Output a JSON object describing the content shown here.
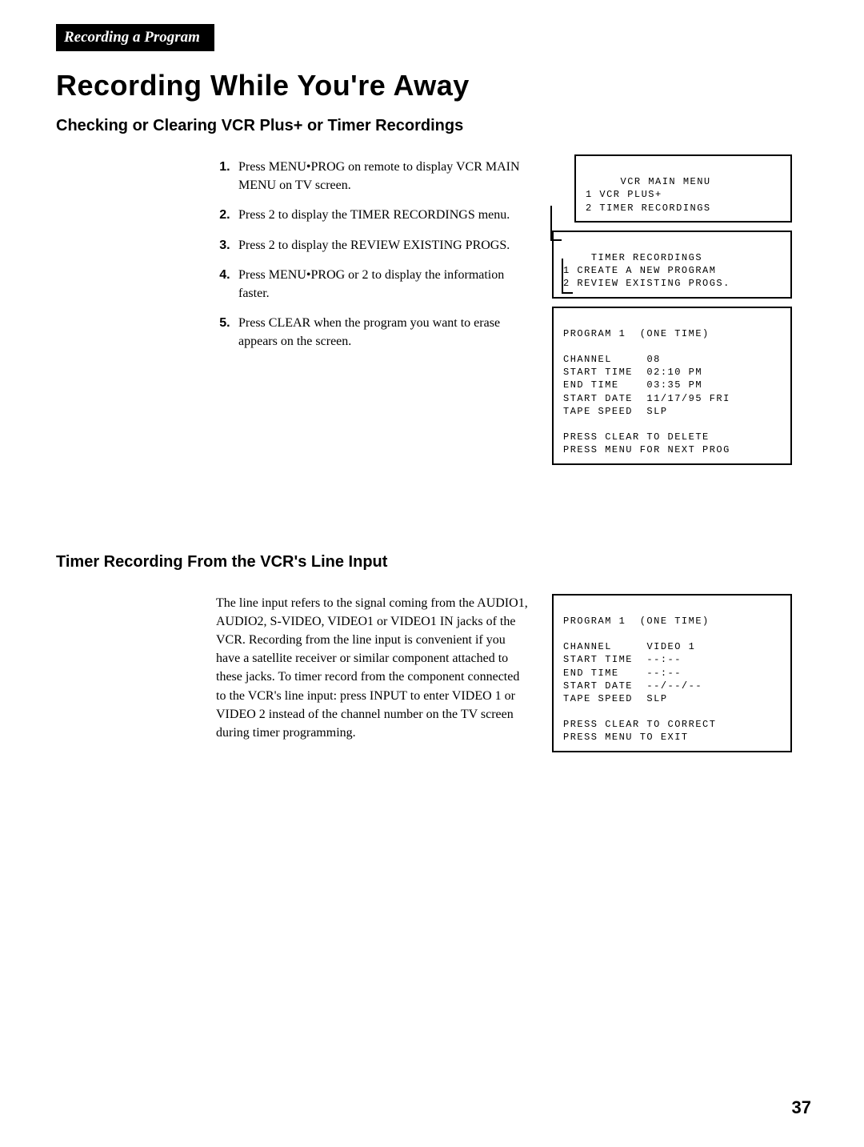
{
  "header": {
    "tab": "Recording a Program",
    "title": "Recording While You're Away"
  },
  "section1": {
    "heading": "Checking or Clearing VCR Plus+ or Timer Recordings",
    "steps": [
      "Press MENU•PROG on remote to display VCR MAIN MENU on TV screen.",
      "Press 2 to display the TIMER RECORDINGS menu.",
      "Press 2 to display the REVIEW EXISTING PROGS.",
      "Press MENU•PROG or 2 to display the information faster.",
      "Press CLEAR when the program you want to erase appears on the screen."
    ],
    "screen1": {
      "title": "VCR MAIN MENU",
      "items": [
        "1 VCR PLUS+",
        "2 TIMER RECORDINGS"
      ]
    },
    "screen2": {
      "title": "TIMER RECORDINGS",
      "items": [
        "1 CREATE A NEW PROGRAM",
        "2 REVIEW EXISTING PROGS."
      ]
    },
    "screen3": {
      "title": "PROGRAM 1  (ONE TIME)",
      "rows": [
        {
          "label": "CHANNEL",
          "value": "08"
        },
        {
          "label": "START TIME",
          "value": "02:10 PM"
        },
        {
          "label": "END TIME",
          "value": "03:35 PM"
        },
        {
          "label": "START DATE",
          "value": "11/17/95 FRI"
        },
        {
          "label": "TAPE SPEED",
          "value": "SLP"
        }
      ],
      "footer": [
        "PRESS CLEAR TO DELETE",
        "PRESS MENU FOR NEXT PROG"
      ]
    }
  },
  "section2": {
    "heading": "Timer Recording From the VCR's Line Input",
    "body": "The line input refers to the signal coming from the AUDIO1, AUDIO2, S-VIDEO, VIDEO1 or VIDEO1 IN jacks of the VCR. Recording from the line input is convenient if you have a satellite receiver or similar component attached to these jacks. To timer record from the component connected to the VCR's line input: press INPUT to enter VIDEO 1 or VIDEO 2 instead of the channel number on the TV screen during timer programming.",
    "screen": {
      "title": "PROGRAM 1  (ONE TIME)",
      "rows": [
        {
          "label": "CHANNEL",
          "value": "VIDEO 1"
        },
        {
          "label": "START TIME",
          "value": "--:--"
        },
        {
          "label": "END TIME",
          "value": "--:--"
        },
        {
          "label": "START DATE",
          "value": "--/--/--"
        },
        {
          "label": "TAPE SPEED",
          "value": "SLP"
        }
      ],
      "footer": [
        "PRESS CLEAR TO CORRECT",
        "PRESS MENU TO EXIT"
      ]
    }
  },
  "pagenum": "37"
}
